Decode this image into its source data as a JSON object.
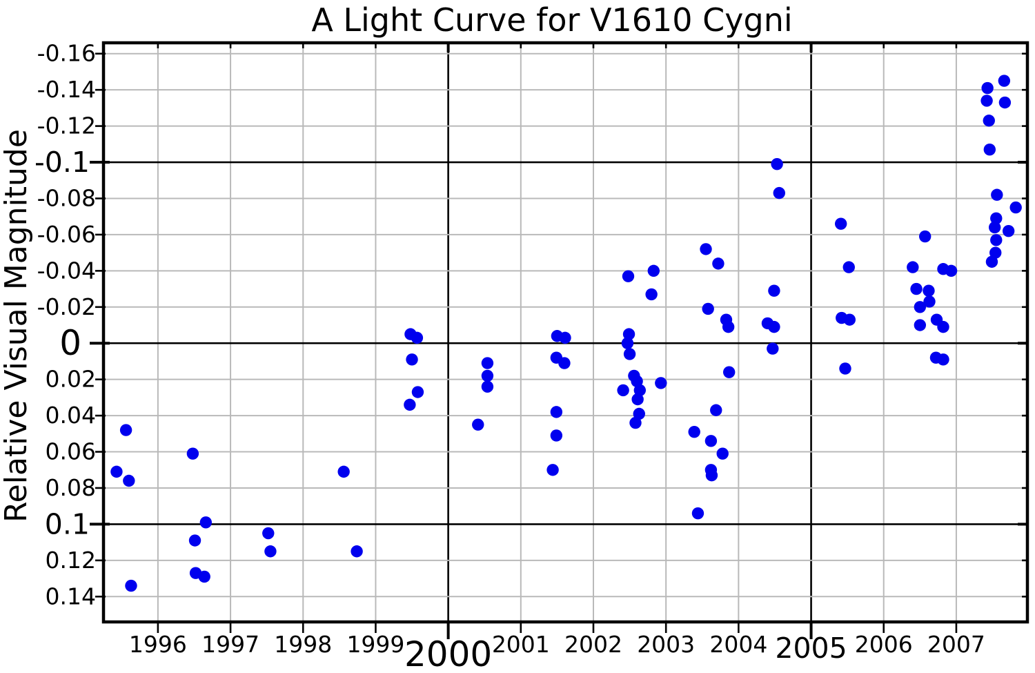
{
  "style": {
    "background": "#ffffff",
    "title_color": "#0000ee",
    "marker_color": "#0000ee",
    "minor_grid_color": "#b9b9b9",
    "major_grid_color": "#000000",
    "axis_color": "#000000"
  },
  "chart_data": {
    "type": "scatter",
    "title": "A Light Curve for V1610 Cygni",
    "xlabel": "",
    "ylabel": "Relative Visual Magnitude",
    "legend": "none",
    "grid": true,
    "y_axis_inverted": true,
    "x_range": [
      1995.25,
      2007.98
    ],
    "y_range": [
      -0.166,
      0.154
    ],
    "marker_radius": 8.7,
    "x_ticks": [
      {
        "v": 1996,
        "label": "1996",
        "size": "small"
      },
      {
        "v": 1997,
        "label": "1997",
        "size": "small"
      },
      {
        "v": 1998,
        "label": "1998",
        "size": "small"
      },
      {
        "v": 1999,
        "label": "1999",
        "size": "small"
      },
      {
        "v": 2000,
        "label": "2000",
        "size": "xlarge"
      },
      {
        "v": 2001,
        "label": "2001",
        "size": "small"
      },
      {
        "v": 2002,
        "label": "2002",
        "size": "small"
      },
      {
        "v": 2003,
        "label": "2003",
        "size": "small"
      },
      {
        "v": 2004,
        "label": "2004",
        "size": "small"
      },
      {
        "v": 2005,
        "label": "2005",
        "size": "large"
      },
      {
        "v": 2006,
        "label": "2006",
        "size": "small"
      },
      {
        "v": 2007,
        "label": "2007",
        "size": "small"
      }
    ],
    "y_ticks": [
      {
        "v": -0.16,
        "label": "-0.16",
        "size": "small"
      },
      {
        "v": -0.14,
        "label": "-0.14",
        "size": "small"
      },
      {
        "v": -0.12,
        "label": "-0.12",
        "size": "small"
      },
      {
        "v": -0.1,
        "label": "-0.1",
        "size": "large"
      },
      {
        "v": -0.08,
        "label": "-0.08",
        "size": "small"
      },
      {
        "v": -0.06,
        "label": "-0.06",
        "size": "small"
      },
      {
        "v": -0.04,
        "label": "-0.04",
        "size": "small"
      },
      {
        "v": -0.02,
        "label": "-0.02",
        "size": "small"
      },
      {
        "v": 0,
        "label": "0",
        "size": "xlarge"
      },
      {
        "v": 0.02,
        "label": "0.02",
        "size": "small"
      },
      {
        "v": 0.04,
        "label": "0.04",
        "size": "small"
      },
      {
        "v": 0.06,
        "label": "0.06",
        "size": "small"
      },
      {
        "v": 0.08,
        "label": "0.08",
        "size": "small"
      },
      {
        "v": 0.1,
        "label": "0.1",
        "size": "large"
      },
      {
        "v": 0.12,
        "label": "0.12",
        "size": "small"
      },
      {
        "v": 0.14,
        "label": "0.14",
        "size": "small"
      }
    ],
    "points": [
      [
        1995.43,
        0.071
      ],
      [
        1995.56,
        0.048
      ],
      [
        1995.6,
        0.076
      ],
      [
        1995.63,
        0.134
      ],
      [
        1996.48,
        0.061
      ],
      [
        1996.51,
        0.109
      ],
      [
        1996.52,
        0.127
      ],
      [
        1996.64,
        0.129
      ],
      [
        1996.66,
        0.099
      ],
      [
        1997.52,
        0.105
      ],
      [
        1997.55,
        0.115
      ],
      [
        1998.56,
        0.071
      ],
      [
        1998.74,
        0.115
      ],
      [
        1999.47,
        0.034
      ],
      [
        1999.48,
        -0.005
      ],
      [
        1999.5,
        0.009
      ],
      [
        1999.57,
        -0.003
      ],
      [
        1999.58,
        0.027
      ],
      [
        2000.41,
        0.045
      ],
      [
        2000.54,
        0.011
      ],
      [
        2000.54,
        0.018
      ],
      [
        2000.54,
        0.024
      ],
      [
        2001.44,
        0.07
      ],
      [
        2001.49,
        0.008
      ],
      [
        2001.49,
        0.038
      ],
      [
        2001.49,
        0.051
      ],
      [
        2001.5,
        -0.004
      ],
      [
        2001.6,
        0.011
      ],
      [
        2001.61,
        -0.003
      ],
      [
        2002.41,
        0.026
      ],
      [
        2002.47,
        0.0
      ],
      [
        2002.48,
        -0.037
      ],
      [
        2002.49,
        -0.005
      ],
      [
        2002.5,
        0.006
      ],
      [
        2002.56,
        0.018
      ],
      [
        2002.58,
        0.044
      ],
      [
        2002.6,
        0.021
      ],
      [
        2002.61,
        0.031
      ],
      [
        2002.63,
        0.039
      ],
      [
        2002.64,
        0.026
      ],
      [
        2002.8,
        -0.027
      ],
      [
        2002.83,
        -0.04
      ],
      [
        2002.93,
        0.022
      ],
      [
        2003.39,
        0.049
      ],
      [
        2003.44,
        0.094
      ],
      [
        2003.55,
        -0.052
      ],
      [
        2003.58,
        -0.019
      ],
      [
        2003.62,
        0.054
      ],
      [
        2003.62,
        0.07
      ],
      [
        2003.63,
        0.073
      ],
      [
        2003.69,
        0.037
      ],
      [
        2003.72,
        -0.044
      ],
      [
        2003.78,
        0.061
      ],
      [
        2003.83,
        -0.013
      ],
      [
        2003.86,
        -0.009
      ],
      [
        2003.87,
        0.016
      ],
      [
        2004.4,
        -0.011
      ],
      [
        2004.47,
        0.003
      ],
      [
        2004.49,
        -0.029
      ],
      [
        2004.49,
        -0.009
      ],
      [
        2004.53,
        -0.099
      ],
      [
        2004.56,
        -0.083
      ],
      [
        2005.41,
        -0.066
      ],
      [
        2005.42,
        -0.014
      ],
      [
        2005.47,
        0.014
      ],
      [
        2005.52,
        -0.042
      ],
      [
        2005.53,
        -0.013
      ],
      [
        2006.4,
        -0.042
      ],
      [
        2006.45,
        -0.03
      ],
      [
        2006.5,
        -0.02
      ],
      [
        2006.5,
        -0.01
      ],
      [
        2006.57,
        -0.059
      ],
      [
        2006.62,
        -0.029
      ],
      [
        2006.63,
        -0.023
      ],
      [
        2006.72,
        0.008
      ],
      [
        2006.73,
        -0.013
      ],
      [
        2006.82,
        -0.041
      ],
      [
        2006.82,
        -0.009
      ],
      [
        2006.82,
        0.009
      ],
      [
        2006.93,
        -0.04
      ],
      [
        2007.42,
        -0.134
      ],
      [
        2007.43,
        -0.141
      ],
      [
        2007.45,
        -0.123
      ],
      [
        2007.46,
        -0.107
      ],
      [
        2007.49,
        -0.045
      ],
      [
        2007.53,
        -0.064
      ],
      [
        2007.54,
        -0.05
      ],
      [
        2007.55,
        -0.057
      ],
      [
        2007.55,
        -0.069
      ],
      [
        2007.56,
        -0.082
      ],
      [
        2007.66,
        -0.145
      ],
      [
        2007.67,
        -0.133
      ],
      [
        2007.72,
        -0.062
      ],
      [
        2007.82,
        -0.075
      ]
    ]
  }
}
